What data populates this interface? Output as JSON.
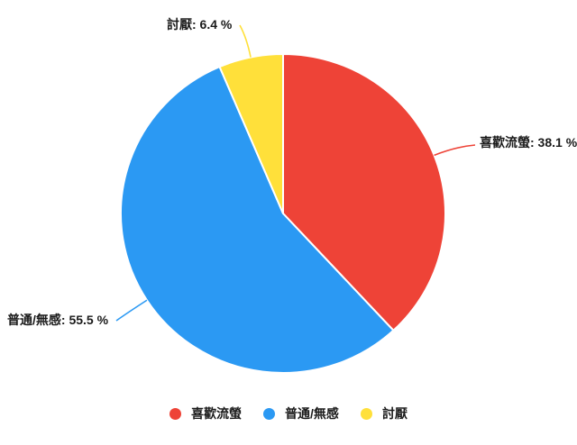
{
  "chart_data": {
    "type": "pie",
    "title": "",
    "unit": "%",
    "start_angle_deg": 0,
    "direction": "clockwise",
    "legend_position": "bottom",
    "background_color": "#ffffff",
    "label_color": "#1a1a1a",
    "slice_border_color": "#ffffff",
    "categories": [
      "喜歡流螢",
      "普通/無感",
      "討厭"
    ],
    "values": [
      38.1,
      55.5,
      6.4
    ],
    "slices": [
      {
        "label": "喜歡流螢",
        "value": 38.1,
        "color": "#ee4337",
        "callout": "喜歡流螢: 38.1 %"
      },
      {
        "label": "普通/無感",
        "value": 55.5,
        "color": "#2b99f3",
        "callout": "普通/無感: 55.5 %"
      },
      {
        "label": "討厭",
        "value": 6.4,
        "color": "#ffe03a",
        "callout": "討厭: 6.4 %"
      }
    ]
  }
}
